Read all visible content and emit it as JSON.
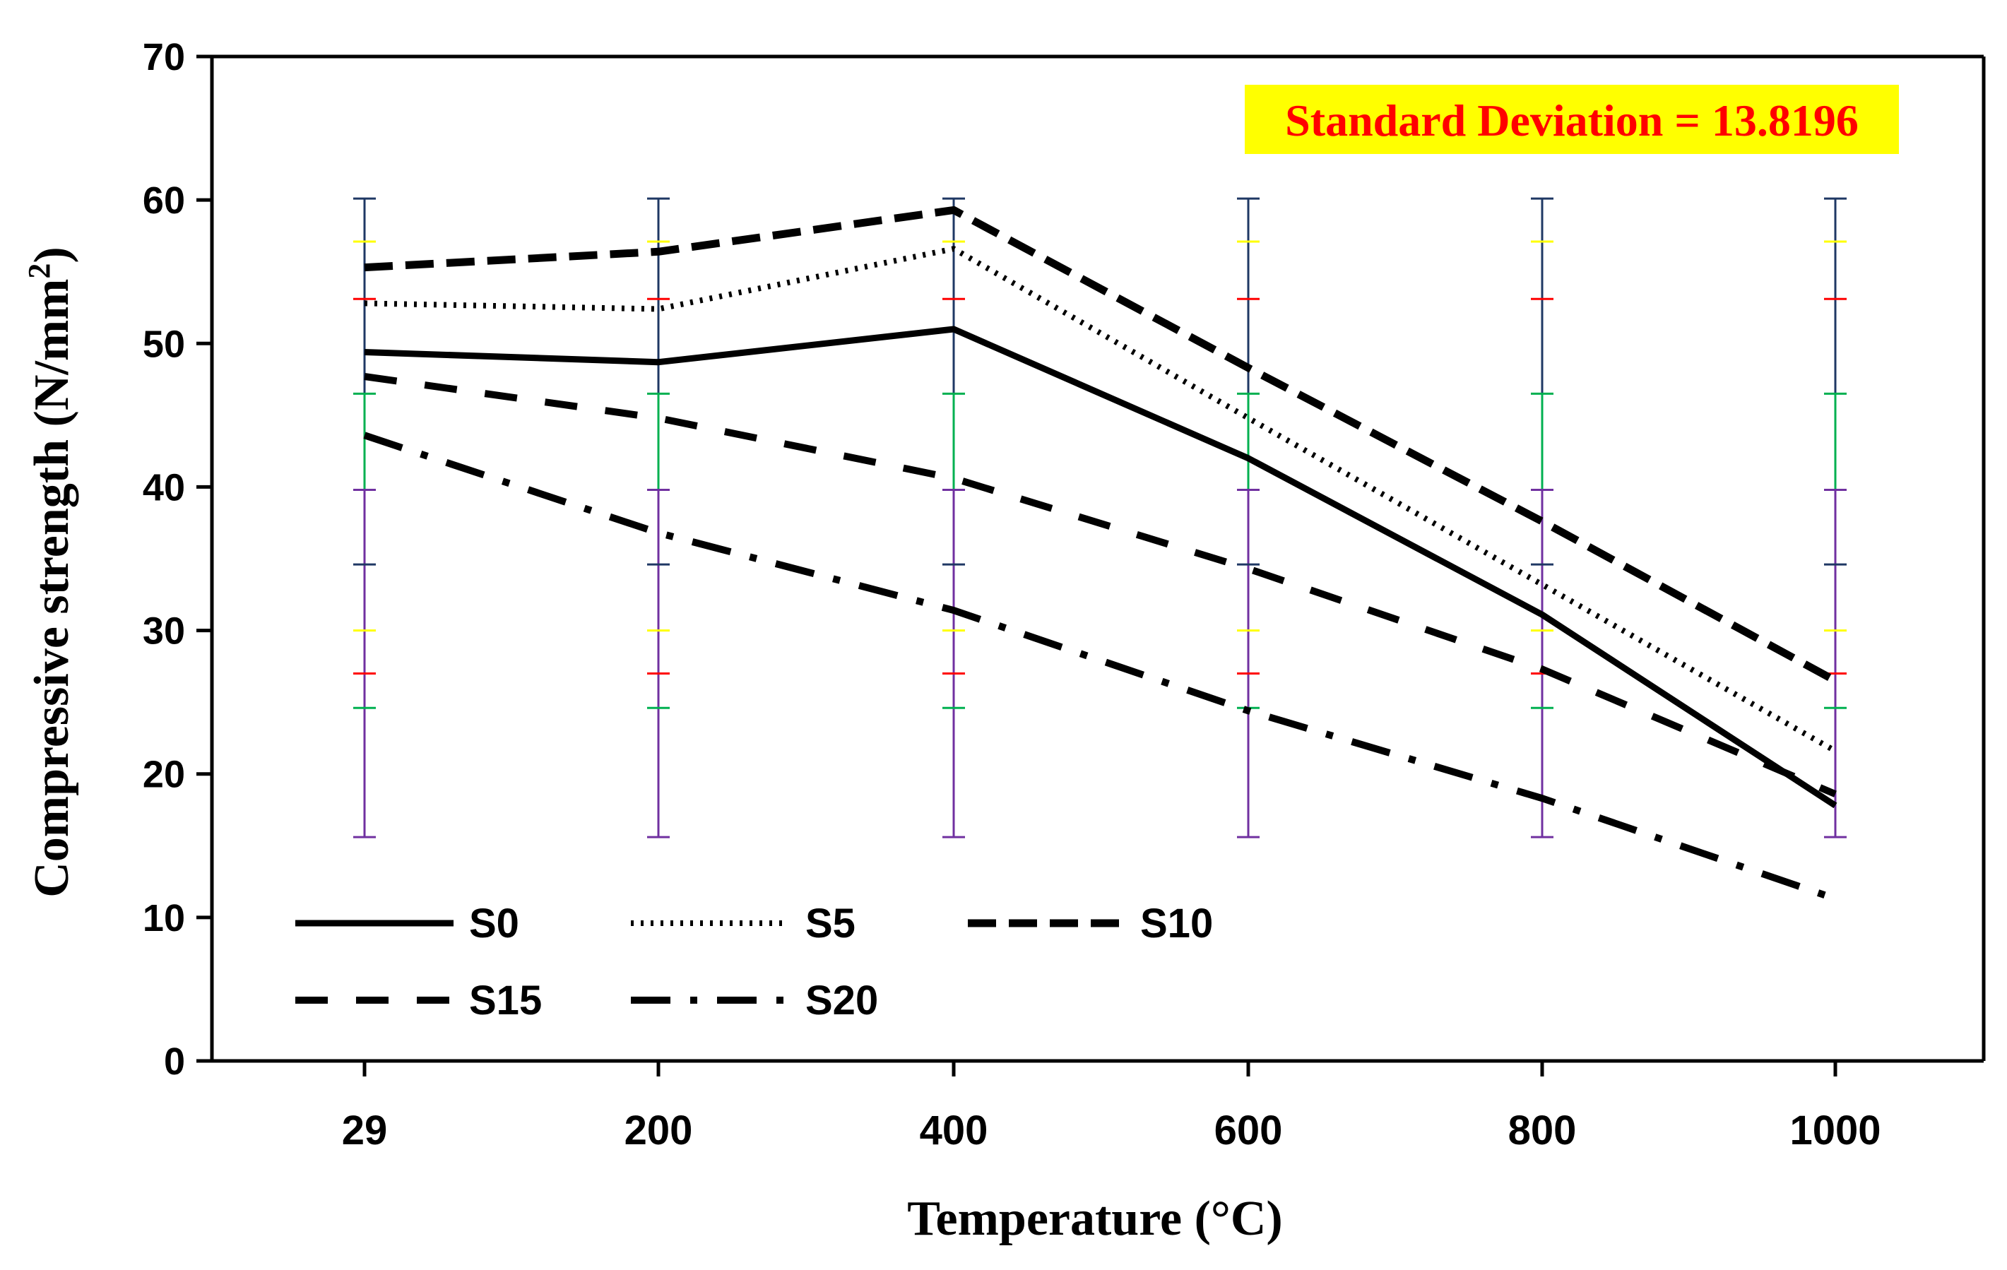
{
  "chart_data": {
    "type": "line",
    "title": "",
    "xlabel": "Temperature (°C)",
    "ylabel": "Compressive strength (N/mm²)",
    "ylabel_parts": {
      "main": "Compressive strength (N/mm",
      "sup": "2",
      "close": ")"
    },
    "categories": [
      "29",
      "200",
      "400",
      "600",
      "800",
      "1000"
    ],
    "yticks": [
      "0",
      "10",
      "20",
      "30",
      "40",
      "50",
      "60",
      "70"
    ],
    "ylim": [
      0,
      70
    ],
    "grid": false,
    "legend_position": "bottom-left",
    "series": [
      {
        "name": "S0",
        "style": "solid",
        "values": [
          49.4,
          48.7,
          51.0,
          42.0,
          31.1,
          17.8
        ]
      },
      {
        "name": "S5",
        "style": "dotted",
        "values": [
          52.8,
          52.4,
          56.6,
          44.8,
          33.2,
          21.6
        ]
      },
      {
        "name": "S10",
        "style": "dashed",
        "values": [
          55.3,
          56.4,
          59.3,
          48.3,
          37.6,
          26.5
        ]
      },
      {
        "name": "S15",
        "style": "longdash",
        "values": [
          47.7,
          44.8,
          40.6,
          34.3,
          27.3,
          18.6
        ]
      },
      {
        "name": "S20",
        "style": "dashdot",
        "values": [
          43.6,
          36.8,
          31.4,
          24.4,
          18.3,
          11.3
        ]
      }
    ],
    "error_bars": {
      "range": [
        15.6,
        60.1
      ],
      "segments": [
        {
          "from": 15.6,
          "to": 39.8,
          "color": "#7030a0"
        },
        {
          "from": 39.8,
          "to": 46.5,
          "color": "#00b050"
        },
        {
          "from": 46.5,
          "to": 60.1,
          "color": "#1f3864"
        }
      ],
      "caps": [
        {
          "value": 60.1,
          "color": "#1f3864"
        },
        {
          "value": 57.1,
          "color": "#ffff00"
        },
        {
          "value": 53.1,
          "color": "#ff0000"
        },
        {
          "value": 46.5,
          "color": "#00b050"
        },
        {
          "value": 39.8,
          "color": "#7030a0"
        },
        {
          "value": 34.6,
          "color": "#1f3864"
        },
        {
          "value": 30.0,
          "color": "#ffff00"
        },
        {
          "value": 27.0,
          "color": "#ff0000"
        },
        {
          "value": 24.6,
          "color": "#00b050"
        },
        {
          "value": 15.6,
          "color": "#7030a0"
        }
      ]
    },
    "annotation": {
      "text": "Standard Deviation = 13.8196",
      "text_color": "#ff0000",
      "background": "#ffff00",
      "position": "top-right"
    }
  }
}
